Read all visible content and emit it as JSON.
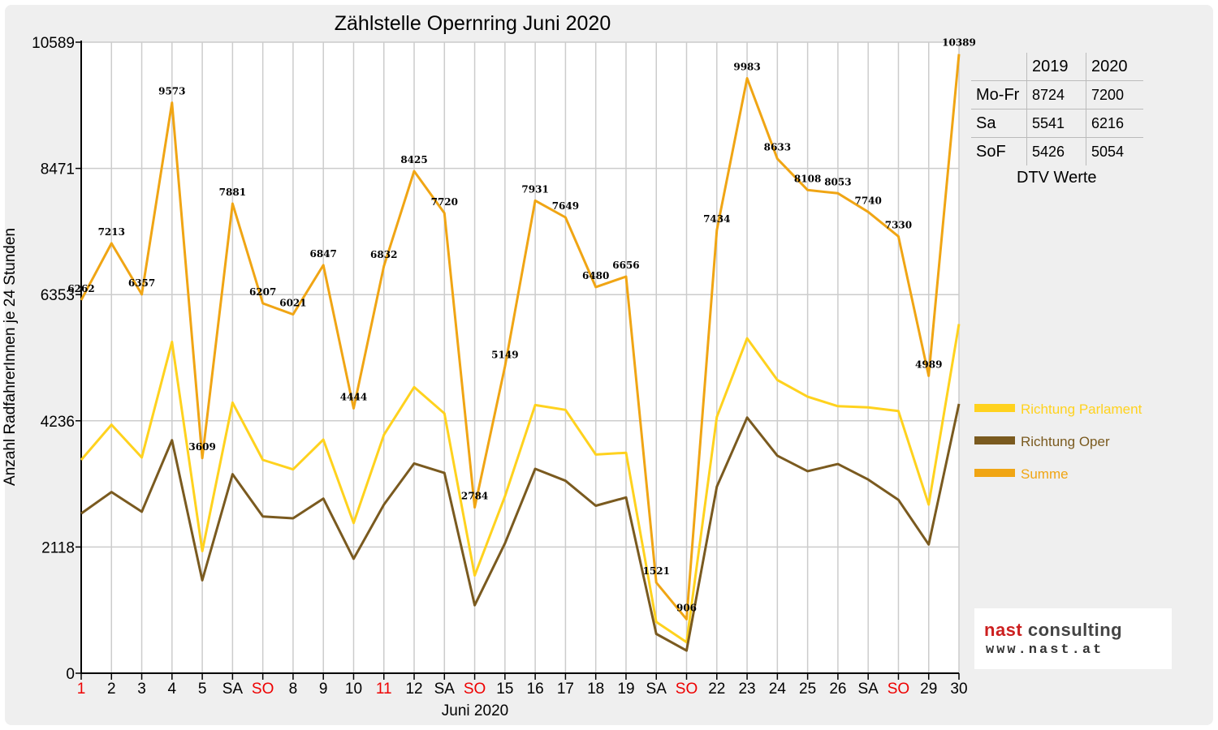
{
  "chart_data": {
    "type": "line",
    "title": "Zählstelle Opernring Juni 2020",
    "xlabel": "Juni 2020",
    "ylabel": "Anzahl RadfahrerInnen je 24 Stunden",
    "ylim": [
      0,
      10589
    ],
    "yticks": [
      0,
      2118,
      4236,
      6353,
      8471,
      10589
    ],
    "grid": true,
    "legend_position": "right",
    "categories": [
      "1",
      "2",
      "3",
      "4",
      "5",
      "SA",
      "SO",
      "8",
      "9",
      "10",
      "11",
      "12",
      "SA",
      "SO",
      "15",
      "16",
      "17",
      "18",
      "19",
      "SA",
      "SO",
      "22",
      "23",
      "24",
      "25",
      "26",
      "SA",
      "SO",
      "29",
      "30"
    ],
    "red_categories": [
      0,
      6,
      10,
      13,
      20,
      27
    ],
    "series": [
      {
        "name": "Richtung Parlament",
        "color": "#ffd21e",
        "values": [
          3580,
          4170,
          3620,
          5560,
          2050,
          4540,
          3580,
          3420,
          3920,
          2520,
          4000,
          4800,
          4360,
          1640,
          2970,
          4500,
          4420,
          3670,
          3700,
          860,
          520,
          4300,
          5620,
          4920,
          4640,
          4480,
          4460,
          4400,
          2830,
          5860
        ]
      },
      {
        "name": "Richtung Oper",
        "color": "#7a5a1f",
        "values": [
          2680,
          3040,
          2710,
          3910,
          1560,
          3340,
          2630,
          2600,
          2930,
          1920,
          2830,
          3520,
          3360,
          1140,
          2180,
          3430,
          3230,
          2810,
          2950,
          660,
          380,
          3130,
          4290,
          3650,
          3390,
          3510,
          3250,
          2910,
          2160,
          4520
        ]
      },
      {
        "name": "Summe",
        "color": "#f0a514",
        "values": [
          6262,
          7213,
          6357,
          9573,
          3609,
          7881,
          6207,
          6021,
          6847,
          4444,
          6832,
          8425,
          7720,
          2784,
          5149,
          7931,
          7649,
          6480,
          6656,
          1521,
          906,
          7434,
          9983,
          8633,
          8108,
          8053,
          7740,
          7330,
          4989,
          10389
        ]
      }
    ],
    "data_labels": [
      "6262",
      "7213",
      "6357",
      "9573",
      "3609",
      "7881",
      "6207",
      "6021",
      "6847",
      "4444",
      "6832",
      "8425",
      "7720",
      "2784",
      "5149",
      "7931",
      "7649",
      "6480",
      "6656",
      "1521",
      "906",
      "7434",
      "9983",
      "8633",
      "8108",
      "8053",
      "7740",
      "7330",
      "4989",
      "10389"
    ]
  },
  "dtv_table": {
    "headers": [
      "",
      "2019",
      "2020"
    ],
    "rows": [
      {
        "label": "Mo-Fr",
        "v2019": "8724",
        "v2020": "7200"
      },
      {
        "label": "Sa",
        "v2019": "5541",
        "v2020": "6216"
      },
      {
        "label": "SoF",
        "v2019": "5426",
        "v2020": "5054"
      }
    ],
    "caption": "DTV Werte"
  },
  "logo": {
    "name_red": "nast",
    "name_rest": " consulting",
    "url": "www.nast.at"
  }
}
